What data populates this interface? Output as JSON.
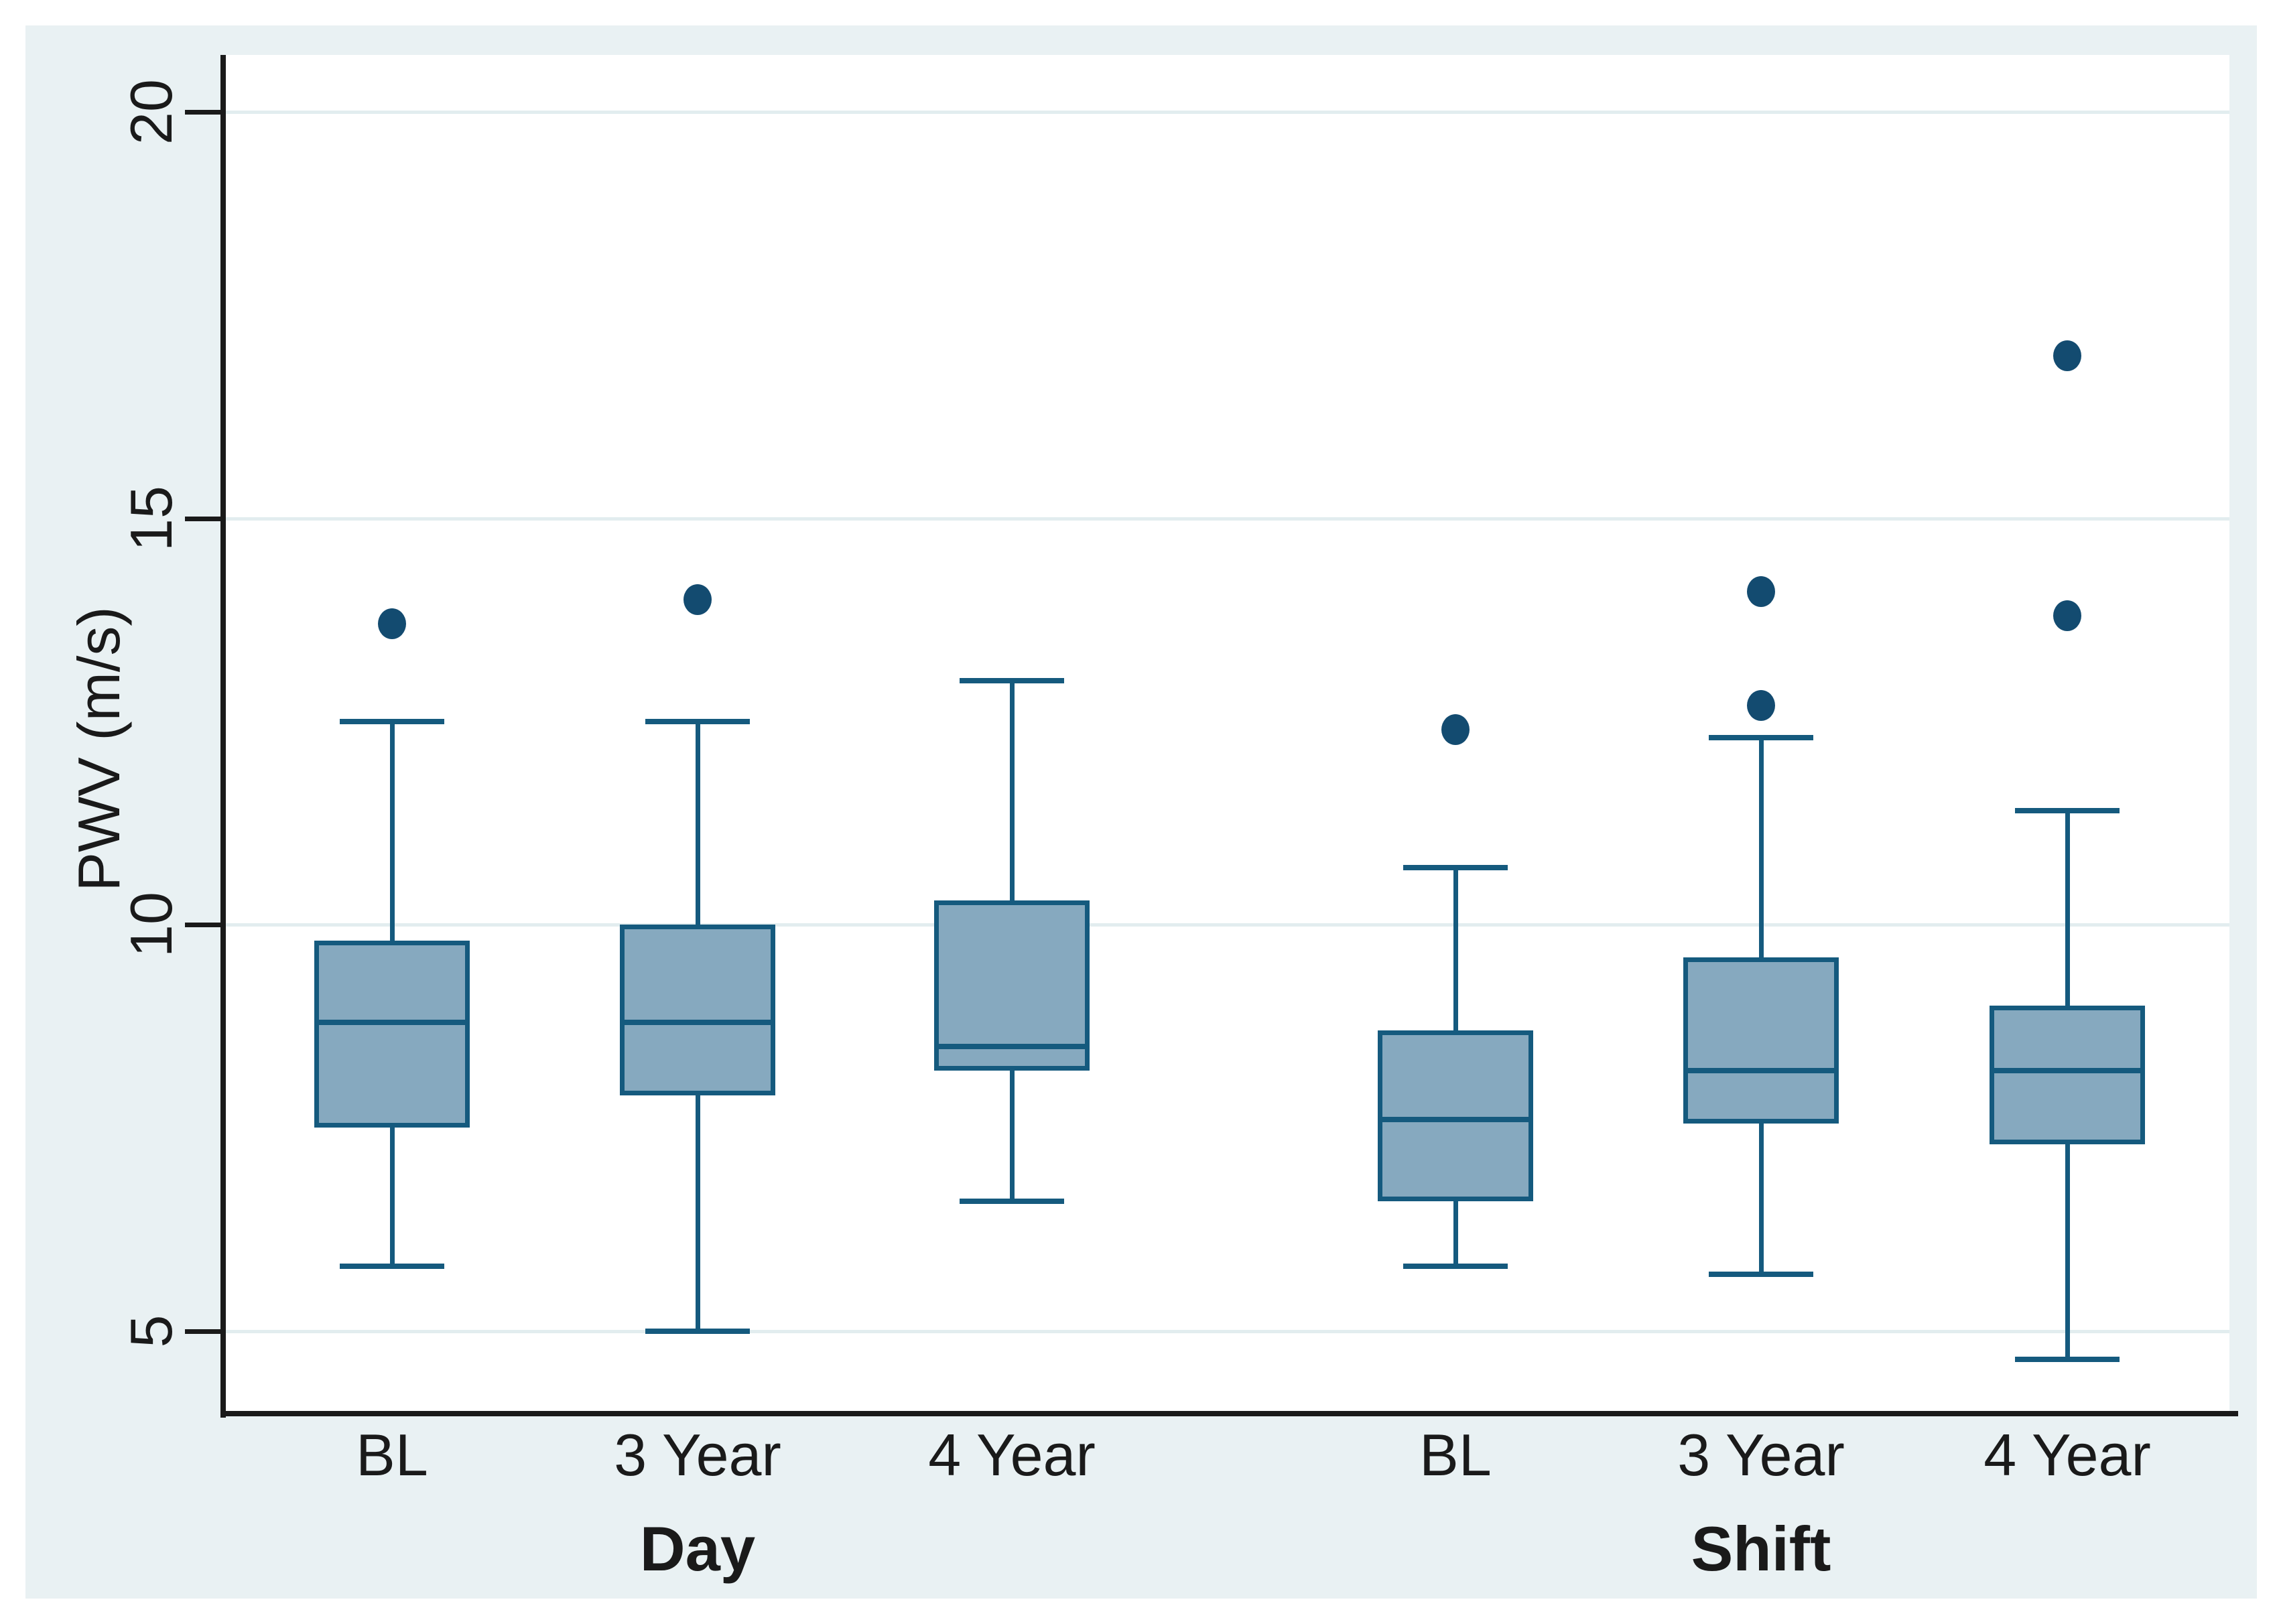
{
  "chart_data": {
    "type": "box",
    "title": "",
    "ylabel": "PWV (m/s)",
    "xlabel": "",
    "yticks": [
      5,
      10,
      15,
      20
    ],
    "ytick_labels": [
      "5",
      "10",
      "15",
      "20"
    ],
    "ylim": [
      4.0,
      20.7
    ],
    "grid": "horizontal-major",
    "legend_position": "none",
    "groups": [
      {
        "label": "Day",
        "boxes": [
          {
            "category": "BL",
            "whisker_low": 5.8,
            "q1": 7.5,
            "median": 8.8,
            "q3": 9.8,
            "whisker_high": 12.5,
            "outliers": [
              13.7
            ]
          },
          {
            "category": "3 Year",
            "whisker_low": 5.0,
            "q1": 7.9,
            "median": 8.8,
            "q3": 10.0,
            "whisker_high": 12.5,
            "outliers": [
              14.0
            ]
          },
          {
            "category": "4 Year",
            "whisker_low": 6.6,
            "q1": 8.2,
            "median": 8.5,
            "q3": 10.3,
            "whisker_high": 13.0,
            "outliers": []
          }
        ]
      },
      {
        "label": "Shift",
        "boxes": [
          {
            "category": "BL",
            "whisker_low": 5.8,
            "q1": 6.6,
            "median": 7.6,
            "q3": 8.7,
            "whisker_high": 10.7,
            "outliers": [
              12.4
            ]
          },
          {
            "category": "3 Year",
            "whisker_low": 5.7,
            "q1": 7.55,
            "median": 8.2,
            "q3": 9.6,
            "whisker_high": 12.3,
            "outliers": [
              12.7,
              14.1
            ]
          },
          {
            "category": "4 Year",
            "whisker_low": 4.65,
            "q1": 7.3,
            "median": 8.2,
            "q3": 9.0,
            "whisker_high": 11.4,
            "outliers": [
              13.8,
              17.0
            ]
          }
        ]
      }
    ],
    "colors": {
      "box_fill": "#86a9bf",
      "box_line": "#155a7e",
      "outlier": "#134b70",
      "gridline": "#e2edef",
      "axis": "#1a1a1a",
      "text": "#1a1a1a",
      "graphregion_bg": "#e9f1f3",
      "plot_bg": "#ffffff",
      "page_bg": "#ffffff"
    }
  }
}
